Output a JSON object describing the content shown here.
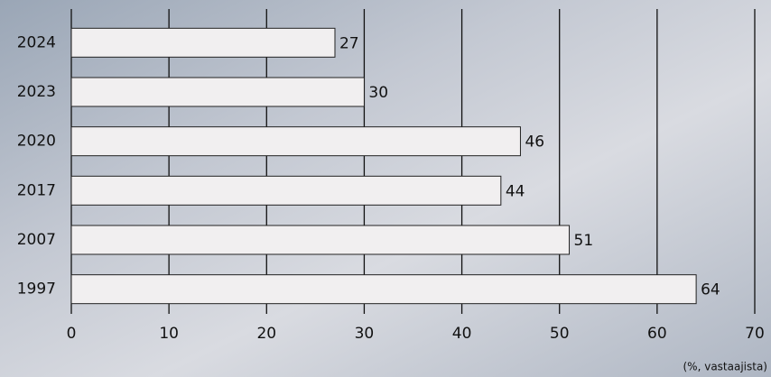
{
  "chart_data": {
    "type": "bar",
    "orientation": "horizontal",
    "categories": [
      "2024",
      "2023",
      "2020",
      "2017",
      "2007",
      "1997"
    ],
    "values": [
      27,
      30,
      46,
      44,
      51,
      64
    ],
    "color": "#f1eff0",
    "xlim": [
      0,
      70
    ],
    "xticks": [
      0,
      10,
      20,
      30,
      40,
      50,
      60,
      70
    ],
    "grid": true,
    "note": "(%, vastaajista)"
  }
}
